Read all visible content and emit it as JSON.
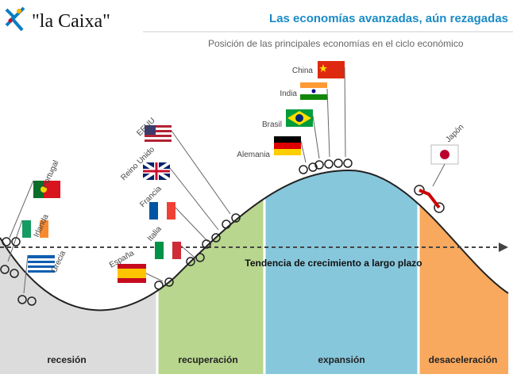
{
  "header": {
    "logo": "\"la Caixa\"",
    "title": "Las economías avanzadas, aún rezagadas",
    "subtitle": "Posición de las principales economías en el ciclo económico"
  },
  "countries": [
    "Portugal",
    "Irlanda",
    "Grecia",
    "España",
    "Italia",
    "Francia",
    "Reino Unido",
    "EEUU",
    "Alemania",
    "Brasil",
    "India",
    "China",
    "Japón"
  ],
  "trend_label": "Tendencia de crecimiento a largo plazo",
  "phases": [
    "recesión",
    "recuperación",
    "expansión",
    "desaceleración"
  ]
}
